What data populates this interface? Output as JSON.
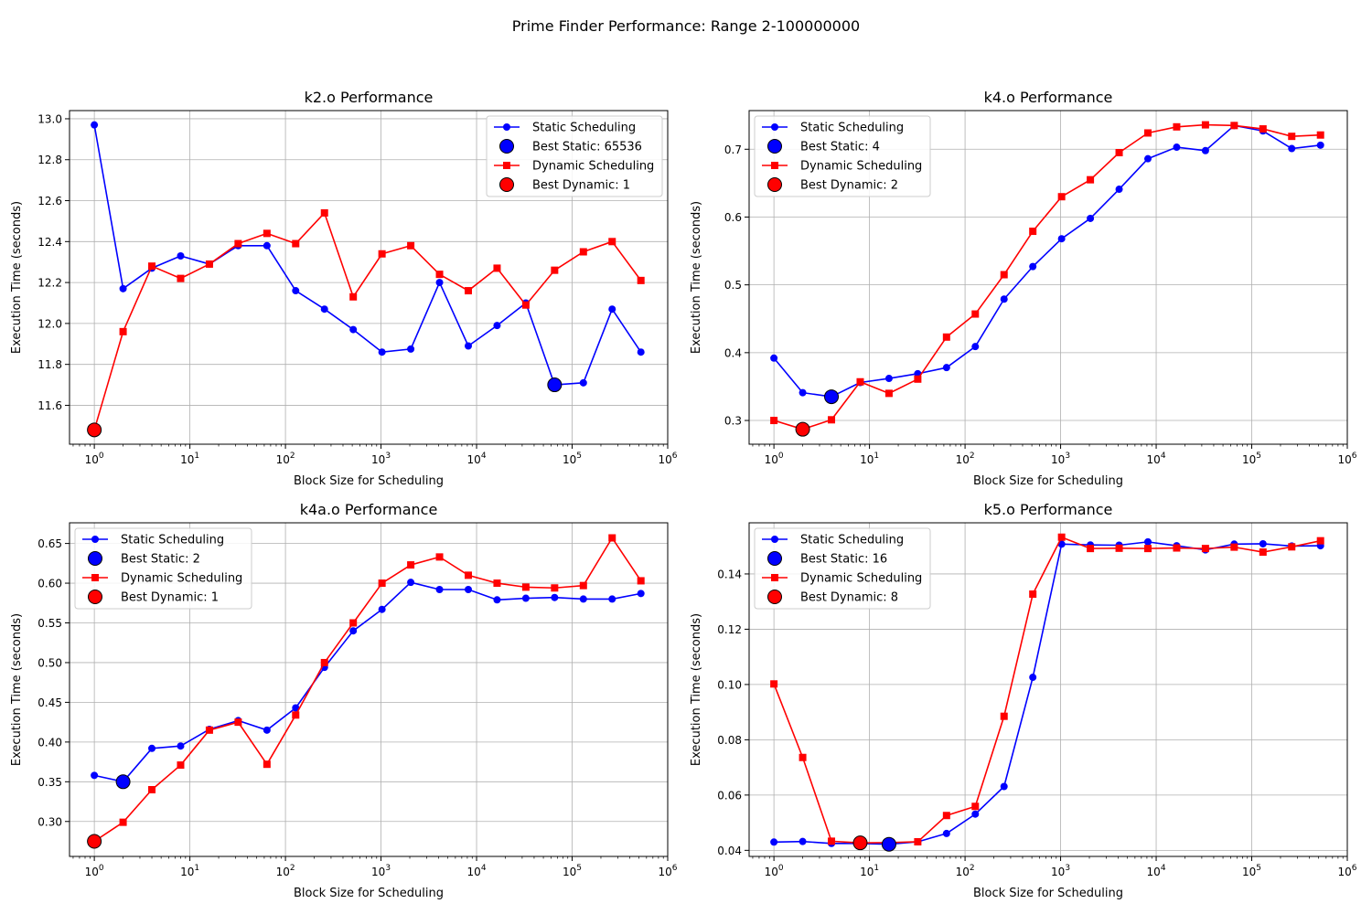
{
  "figure": {
    "suptitle": "Prime Finder Performance: Range 2-100000000"
  },
  "colors": {
    "static": "#0000ff",
    "dynamic": "#ff0000",
    "grid": "#b0b0b0",
    "axes": "#000000"
  },
  "chart_data": [
    {
      "type": "line",
      "title": "k2.o Performance",
      "xlabel": "Block Size for Scheduling",
      "ylabel": "Execution Time (seconds)",
      "xscale": "log",
      "xlim": [
        0.55,
        1000000
      ],
      "ylim": [
        11.41,
        13.04
      ],
      "yticks": [
        11.6,
        11.8,
        12.0,
        12.2,
        12.4,
        12.6,
        12.8,
        13.0
      ],
      "ytick_labels": [
        "11.6",
        "11.8",
        "12.0",
        "12.2",
        "12.4",
        "12.6",
        "12.8",
        "13.0"
      ],
      "grid": true,
      "legend_placement": "top-right",
      "x": [
        1,
        2,
        4,
        8,
        16,
        32,
        64,
        128,
        256,
        512,
        1024,
        2048,
        4096,
        8192,
        16384,
        32768,
        65536,
        131072,
        262144,
        524288
      ],
      "series": [
        {
          "name": "Static Scheduling",
          "marker": "circle",
          "color": "#0000ff",
          "values": [
            12.97,
            12.17,
            12.27,
            12.33,
            12.29,
            12.38,
            12.38,
            12.16,
            12.07,
            11.97,
            11.86,
            11.875,
            12.2,
            11.89,
            11.99,
            12.1,
            11.7,
            11.71,
            12.07,
            11.86
          ]
        },
        {
          "name": "Dynamic Scheduling",
          "marker": "square",
          "color": "#ff0000",
          "values": [
            11.48,
            11.96,
            12.28,
            12.22,
            12.29,
            12.39,
            12.44,
            12.39,
            12.54,
            12.13,
            12.34,
            12.38,
            12.24,
            12.16,
            12.27,
            12.09,
            12.26,
            12.35,
            12.4,
            12.21
          ]
        }
      ],
      "best": [
        {
          "label": "Best Static: 65536",
          "x": 65536,
          "y": 11.7,
          "color": "#0000ff"
        },
        {
          "label": "Best Dynamic: 1",
          "x": 1,
          "y": 11.48,
          "color": "#ff0000"
        }
      ]
    },
    {
      "type": "line",
      "title": "k4.o Performance",
      "xlabel": "Block Size for Scheduling",
      "ylabel": "Execution Time (seconds)",
      "xscale": "log",
      "xlim": [
        0.55,
        1000000
      ],
      "ylim": [
        0.265,
        0.757
      ],
      "yticks": [
        0.3,
        0.4,
        0.5,
        0.6,
        0.7
      ],
      "ytick_labels": [
        "0.3",
        "0.4",
        "0.5",
        "0.6",
        "0.7"
      ],
      "grid": true,
      "legend_placement": "top-left",
      "x": [
        1,
        2,
        4,
        8,
        16,
        32,
        64,
        128,
        256,
        512,
        1024,
        2048,
        4096,
        8192,
        16384,
        32768,
        65536,
        131072,
        262144,
        524288
      ],
      "series": [
        {
          "name": "Static Scheduling",
          "marker": "circle",
          "color": "#0000ff",
          "values": [
            0.392,
            0.341,
            0.335,
            0.356,
            0.362,
            0.369,
            0.378,
            0.409,
            0.479,
            0.527,
            0.568,
            0.598,
            0.641,
            0.686,
            0.703,
            0.698,
            0.735,
            0.727,
            0.701,
            0.706
          ]
        },
        {
          "name": "Dynamic Scheduling",
          "marker": "square",
          "color": "#ff0000",
          "values": [
            0.3,
            0.287,
            0.301,
            0.357,
            0.34,
            0.361,
            0.423,
            0.457,
            0.515,
            0.579,
            0.63,
            0.655,
            0.695,
            0.724,
            0.733,
            0.736,
            0.735,
            0.73,
            0.719,
            0.721
          ]
        }
      ],
      "best": [
        {
          "label": "Best Static: 4",
          "x": 4,
          "y": 0.335,
          "color": "#0000ff"
        },
        {
          "label": "Best Dynamic: 2",
          "x": 2,
          "y": 0.287,
          "color": "#ff0000"
        }
      ]
    },
    {
      "type": "line",
      "title": "k4a.o Performance",
      "xlabel": "Block Size for Scheduling",
      "ylabel": "Execution Time (seconds)",
      "xscale": "log",
      "xlim": [
        0.55,
        1000000
      ],
      "ylim": [
        0.256,
        0.676
      ],
      "yticks": [
        0.3,
        0.35,
        0.4,
        0.45,
        0.5,
        0.55,
        0.6,
        0.65
      ],
      "ytick_labels": [
        "0.30",
        "0.35",
        "0.40",
        "0.45",
        "0.50",
        "0.55",
        "0.60",
        "0.65"
      ],
      "grid": true,
      "legend_placement": "top-left",
      "x": [
        1,
        2,
        4,
        8,
        16,
        32,
        64,
        128,
        256,
        512,
        1024,
        2048,
        4096,
        8192,
        16384,
        32768,
        65536,
        131072,
        262144,
        524288
      ],
      "series": [
        {
          "name": "Static Scheduling",
          "marker": "circle",
          "color": "#0000ff",
          "values": [
            0.358,
            0.35,
            0.392,
            0.395,
            0.416,
            0.427,
            0.415,
            0.443,
            0.494,
            0.54,
            0.567,
            0.601,
            0.592,
            0.592,
            0.579,
            0.581,
            0.582,
            0.58,
            0.58,
            0.587
          ]
        },
        {
          "name": "Dynamic Scheduling",
          "marker": "square",
          "color": "#ff0000",
          "values": [
            0.275,
            0.299,
            0.34,
            0.371,
            0.415,
            0.425,
            0.372,
            0.434,
            0.5,
            0.55,
            0.6,
            0.623,
            0.633,
            0.61,
            0.6,
            0.595,
            0.594,
            0.597,
            0.657,
            0.603
          ]
        }
      ],
      "best": [
        {
          "label": "Best Static: 2",
          "x": 2,
          "y": 0.35,
          "color": "#0000ff"
        },
        {
          "label": "Best Dynamic: 1",
          "x": 1,
          "y": 0.275,
          "color": "#ff0000"
        }
      ]
    },
    {
      "type": "line",
      "title": "k5.o Performance",
      "xlabel": "Block Size for Scheduling",
      "ylabel": "Execution Time (seconds)",
      "xscale": "log",
      "xlim": [
        0.55,
        1000000
      ],
      "ylim": [
        0.0378,
        0.1585
      ],
      "yticks": [
        0.04,
        0.06,
        0.08,
        0.1,
        0.12,
        0.14
      ],
      "ytick_labels": [
        "0.04",
        "0.06",
        "0.08",
        "0.10",
        "0.12",
        "0.14"
      ],
      "grid": true,
      "legend_placement": "top-left",
      "x": [
        1,
        2,
        4,
        8,
        16,
        32,
        64,
        128,
        256,
        512,
        1024,
        2048,
        4096,
        8192,
        16384,
        32768,
        65536,
        131072,
        262144,
        524288
      ],
      "series": [
        {
          "name": "Static Scheduling",
          "marker": "circle",
          "color": "#0000ff",
          "values": [
            0.043,
            0.0432,
            0.0425,
            0.0425,
            0.0422,
            0.0431,
            0.0461,
            0.0531,
            0.0631,
            0.1026,
            0.1508,
            0.1505,
            0.1504,
            0.1516,
            0.1502,
            0.1487,
            0.1508,
            0.1509,
            0.1501,
            0.1502
          ]
        },
        {
          "name": "Dynamic Scheduling",
          "marker": "square",
          "color": "#ff0000",
          "values": [
            0.1002,
            0.0736,
            0.0433,
            0.0427,
            0.0428,
            0.0431,
            0.0526,
            0.0559,
            0.0885,
            0.1327,
            0.1533,
            0.1492,
            0.1493,
            0.1492,
            0.1494,
            0.1492,
            0.1497,
            0.1479,
            0.1498,
            0.152
          ]
        }
      ],
      "best": [
        {
          "label": "Best Static: 16",
          "x": 16,
          "y": 0.0422,
          "color": "#0000ff"
        },
        {
          "label": "Best Dynamic: 8",
          "x": 8,
          "y": 0.0427,
          "color": "#ff0000"
        }
      ]
    }
  ]
}
